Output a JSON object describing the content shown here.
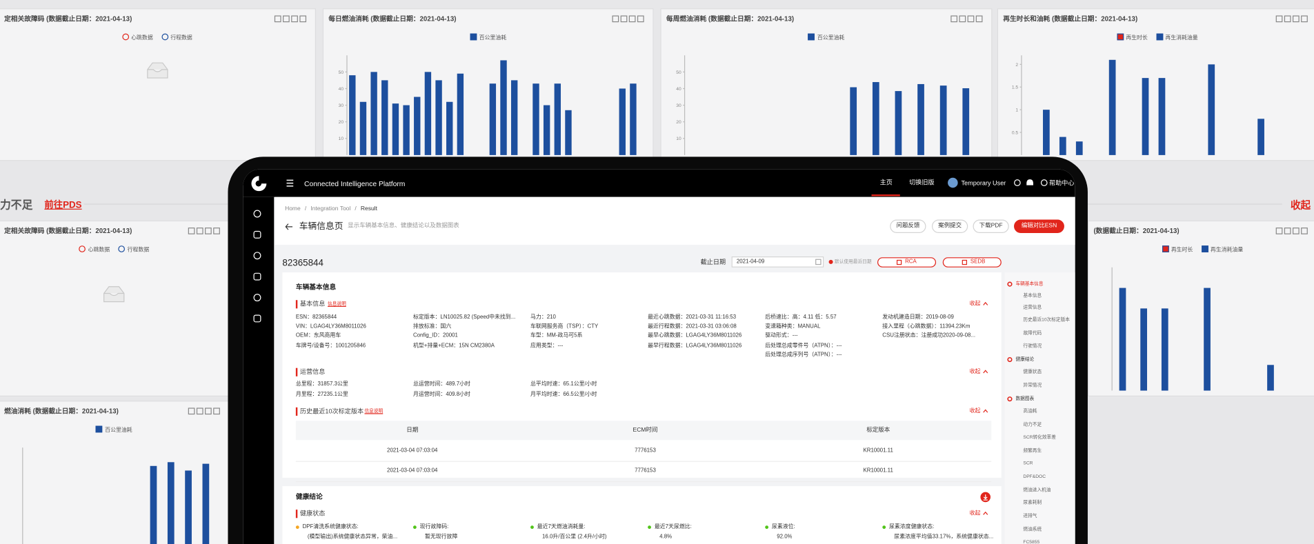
{
  "background": {
    "bar_color": "#1d4f9e",
    "panels": [
      {
        "title": "定相关故障码 (数据截止日期：2021-04-13)",
        "legend": [
          "心跳数据",
          "行程数据"
        ]
      },
      {
        "title": "每日燃油消耗 (数据截止日期：2021-04-13)",
        "legend": [
          "百公里油耗"
        ],
        "ylim": [
          0,
          60
        ],
        "yticks": [
          10,
          20,
          30,
          40,
          50
        ],
        "values": [
          48,
          32,
          50,
          45,
          31,
          30,
          35,
          50,
          45,
          32,
          49,
          null,
          null,
          43,
          57,
          45,
          null,
          43,
          30,
          43,
          27,
          null,
          null,
          null,
          null,
          40,
          43
        ]
      },
      {
        "title": "每周燃油消耗 (数据截止日期：2021-04-13)",
        "legend": [
          "百公里油耗"
        ],
        "ylim": [
          0,
          60
        ],
        "yticks": [
          10,
          20,
          30,
          40,
          50
        ],
        "values": [
          null,
          null,
          null,
          null,
          null,
          null,
          null,
          40.8,
          43.9,
          38.5,
          42.7,
          41.8,
          40.2
        ]
      },
      {
        "title": "再生时长和油耗 (数据截止日期：2021-04-13)",
        "legend": [
          "再生时长",
          "再生消耗油量"
        ],
        "ylim": [
          0,
          2.2
        ],
        "yticks": [
          0.5,
          1,
          1.5,
          2
        ],
        "values": [
          null,
          1.0,
          0.4,
          0.3,
          null,
          2.1,
          null,
          1.7,
          1.7,
          null,
          null,
          2.0,
          null,
          null,
          0.8,
          null,
          null
        ]
      },
      {
        "title": "定相关故障码 (数据截止日期：2021-04-13)",
        "legend": [
          "心跳数据",
          "行程数据"
        ]
      },
      {
        "title": "(数据截止日期：2021-04-13)",
        "legend": [
          "再生时长",
          "再生消耗油量"
        ],
        "ylim": [
          0,
          2.4
        ],
        "values": [
          2.0,
          1.6,
          1.6,
          null,
          2.0,
          null,
          null,
          0.5,
          null
        ]
      },
      {
        "title": "燃油消耗 (数据截止日期：2021-04-13)",
        "legend": [
          "百公里油耗"
        ],
        "ylim": [
          0,
          50
        ],
        "values": [
          null,
          null,
          null,
          null,
          null,
          null,
          null,
          40.8,
          42.7,
          38.5,
          41.9
        ]
      }
    ],
    "section": {
      "title": "力不足",
      "link": "前往PDS",
      "toggle": "收起"
    }
  },
  "screen": {
    "app_title": "Connected Intelligence Platform",
    "nav": [
      "主页",
      "切换旧版"
    ],
    "user": "Temporary User",
    "help": "帮助中心"
  },
  "breadcrumb": {
    "items": [
      "Home",
      "Integration Tool",
      "Result"
    ],
    "separator": "/"
  },
  "page": {
    "title": "车辆信息页",
    "subtitle": "显示车辆基本信息、健康结论以及数据图表",
    "actions": [
      "问题反馈",
      "案例提交",
      "下载PDF",
      "编辑对比ESN"
    ]
  },
  "toolbar": {
    "esn": "82365844",
    "date_label": "截止日期",
    "date": "2021-04-09",
    "hint": "默认使用最近日期",
    "buttons": [
      "RCA",
      "SEDB"
    ]
  },
  "vehicle_card": {
    "title": "车辆基本信息",
    "basic": {
      "title": "基本信息",
      "note": "信息说明",
      "toggle": "收起",
      "columns": [
        [
          "ESN：82365844",
          "VIN：LGAG4LY36M8011026",
          "OEM：东风商用车",
          "车牌号/设备号：1001205846"
        ],
        [
          "标定版本：LN10025.82 (Speed中未找到...",
          "排放标准：国六",
          "Config_ID：20001",
          "机型+排量+ECM：15N CM2380A"
        ],
        [
          "马力：210",
          "车联网服务商（TSP）：CTY",
          "车型：MM-政马可5系",
          "应用类型：---"
        ],
        [
          "最近心跳数据：2021-03-31 11:16:53",
          "最近行程数据：2021-03-31 03:06:08",
          "最早心跳数据：LGAG4LY36M8011026",
          "最早行程数据：LGAG4LY36M8011026"
        ],
        [
          "后桥速比：高：4.11 低：5.57",
          "变速箱种类：MANUAL",
          "驱动形式：---",
          "后处理总成零件号（ATPN）：---",
          "后处理总成序列号（ATPN）：---"
        ],
        [
          "发动机建造日期：2019-08-09",
          "接入里程（心跳数据）：11394.23Km",
          "CSU注册状态：注册成功2020-09-08..."
        ]
      ]
    },
    "operation": {
      "title": "运营信息",
      "toggle": "收起",
      "columns": [
        [
          "总里程：31857.3公里",
          "月里程：27235.1公里"
        ],
        [
          "总运营时间：489.7小时",
          "月运营时间：409.8小时"
        ],
        [
          "总平均时速：65.1公里/小时",
          "月平均时速：66.5公里/小时"
        ]
      ]
    },
    "history": {
      "title": "历史最近10次标定版本",
      "note": "信息说明",
      "toggle": "收起",
      "header": [
        "日期",
        "ECM时间",
        "标定版本"
      ],
      "rows": [
        [
          "2021-03-04 07:03:04",
          "7776153",
          "KR10001.11"
        ],
        [
          "2021-03-04 07:03:04",
          "7776153",
          "KR10001.11"
        ]
      ]
    }
  },
  "health_card": {
    "title": "健康结论",
    "status": {
      "title": "健康状态",
      "toggle": "收起",
      "items": [
        {
          "label": "DPF清洗系统健康状态:",
          "text": "(模型输出)系统健康状态异常，柴油...",
          "color": "#f5a623"
        },
        {
          "label": "现行故障码:",
          "text": "暂无现行故障",
          "color": "#52c41a"
        },
        {
          "label": "最近7天燃油消耗量:",
          "text": "16.0升/百公里 (2.4升/小时)",
          "color": "#52c41a"
        },
        {
          "label": "最近7天尿燃比:",
          "text": "4.8%",
          "color": "#52c41a"
        },
        {
          "label": "尿素液位:",
          "text": "92.0%",
          "color": "#52c41a"
        },
        {
          "label": "尿素浓度健康状态:",
          "text": "尿素浓度平均值33.17%，系统健康状态...",
          "color": "#52c41a"
        }
      ]
    }
  },
  "side_nav": [
    {
      "label": "车辆基本信息",
      "level": 1,
      "active": true
    },
    {
      "label": "基本信息",
      "level": 2
    },
    {
      "label": "运营信息",
      "level": 2
    },
    {
      "label": "历史最近10次标定版本",
      "level": 2
    },
    {
      "label": "故障代码",
      "level": 2
    },
    {
      "label": "行驶情况",
      "level": 2
    },
    {
      "label": "健康结论",
      "level": 1
    },
    {
      "label": "健康状态",
      "level": 2
    },
    {
      "label": "异常情况",
      "level": 2
    },
    {
      "label": "数据图表",
      "level": 1
    },
    {
      "label": "高油耗",
      "level": 2
    },
    {
      "label": "动力不足",
      "level": 2
    },
    {
      "label": "SCR转化效率差",
      "level": 2
    },
    {
      "label": "频繁再生",
      "level": 2
    },
    {
      "label": "SCR",
      "level": 2
    },
    {
      "label": "DPF&DOC",
      "level": 2
    },
    {
      "label": "燃油进入机油",
      "level": 2
    },
    {
      "label": "尿素耗制",
      "level": 2
    },
    {
      "label": "进排气",
      "level": 2
    },
    {
      "label": "燃油系统",
      "level": 2
    },
    {
      "label": "FC5855",
      "level": 2
    }
  ]
}
